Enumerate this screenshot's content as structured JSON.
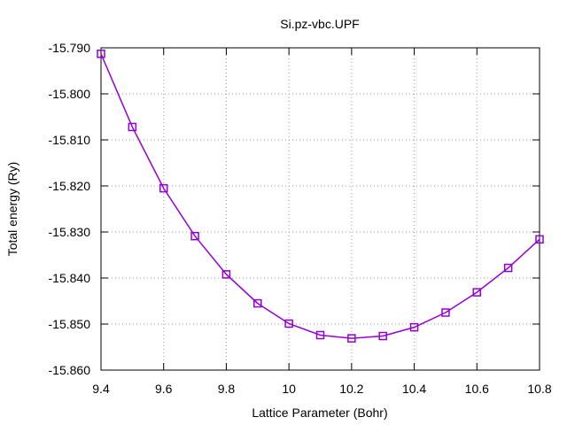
{
  "chart_data": {
    "type": "line",
    "title": "Si.pz-vbc.UPF",
    "xlabel": "Lattice Parameter (Bohr)",
    "ylabel": "Total energy (Ry)",
    "xlim": [
      9.4,
      10.8
    ],
    "ylim": [
      -15.86,
      -15.79
    ],
    "x_ticks": [
      "9.4",
      "9.6",
      "9.8",
      "10",
      "10.2",
      "10.4",
      "10.6",
      "10.8"
    ],
    "y_ticks": [
      "-15.790",
      "-15.800",
      "-15.810",
      "-15.820",
      "-15.830",
      "-15.840",
      "-15.850",
      "-15.860"
    ],
    "grid": true,
    "marker": "open-square",
    "color": "#9400d3",
    "series": [
      {
        "x": [
          9.4,
          9.5,
          9.6,
          9.7,
          9.8,
          9.9,
          10.0,
          10.1,
          10.2,
          10.3,
          10.4,
          10.5,
          10.6,
          10.7,
          10.8
        ],
        "y": [
          -15.7913,
          -15.8072,
          -15.8205,
          -15.8309,
          -15.8392,
          -15.8455,
          -15.8499,
          -15.8524,
          -15.8531,
          -15.8526,
          -15.8507,
          -15.8475,
          -15.8431,
          -15.8378,
          -15.8316
        ]
      }
    ]
  }
}
